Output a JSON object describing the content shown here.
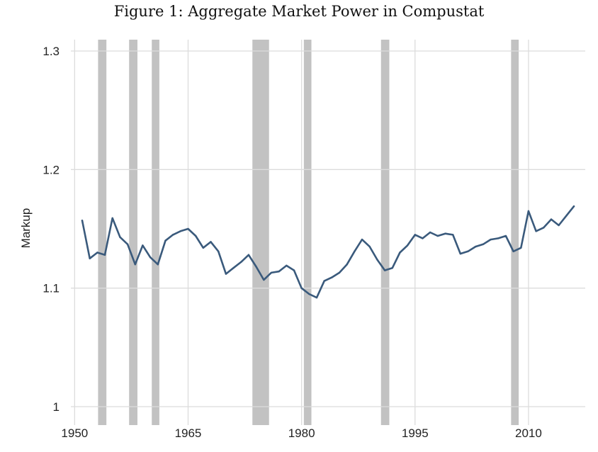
{
  "title": "Figure 1: Aggregate Market Power in Compustat",
  "chart_data": {
    "type": "line",
    "title": "Figure 1: Aggregate Market Power in Compustat",
    "xlabel": "",
    "ylabel": "Markup",
    "xlim": [
      1949.5,
      2017.5
    ],
    "ylim": [
      1.0,
      1.3
    ],
    "x_ticks": [
      1950,
      1965,
      1980,
      1995,
      2010
    ],
    "y_ticks": [
      1,
      1.1,
      1.2,
      1.3
    ],
    "y_tick_labels": [
      "1",
      "1.1",
      "1.2",
      "1.3"
    ],
    "grid": true,
    "line_color": "#3a5a7c",
    "recession_color": "#c2c2c2",
    "recessions": [
      [
        1953.1,
        1954.2
      ],
      [
        1957.2,
        1958.3
      ],
      [
        1960.2,
        1961.2
      ],
      [
        1973.5,
        1975.7
      ],
      [
        1980.3,
        1981.3
      ],
      [
        1990.5,
        1991.6
      ],
      [
        2007.7,
        2008.7
      ]
    ],
    "series": [
      {
        "x": [
          1951,
          1952,
          1953,
          1954,
          1955,
          1956,
          1957,
          1958,
          1959,
          1960,
          1961,
          1962,
          1963,
          1964,
          1965,
          1966,
          1967,
          1968,
          1969,
          1970,
          1971,
          1972,
          1973,
          1974,
          1975,
          1976,
          1977,
          1978,
          1979,
          1980,
          1981,
          1982,
          1983,
          1984,
          1985,
          1986,
          1987,
          1988,
          1989,
          1990,
          1991,
          1992,
          1993,
          1994,
          1995,
          1996,
          1997,
          1998,
          1999,
          2000,
          2001,
          2002,
          2003,
          2004,
          2005,
          2006,
          2007,
          2008,
          2009,
          2010,
          2011,
          2012,
          2013,
          2014,
          2015,
          2016
        ],
        "values": [
          1.157,
          1.125,
          1.13,
          1.128,
          1.159,
          1.143,
          1.137,
          1.12,
          1.136,
          1.126,
          1.12,
          1.14,
          1.145,
          1.148,
          1.15,
          1.144,
          1.134,
          1.139,
          1.131,
          1.112,
          1.117,
          1.122,
          1.128,
          1.118,
          1.107,
          1.113,
          1.114,
          1.119,
          1.115,
          1.1,
          1.095,
          1.092,
          1.106,
          1.109,
          1.113,
          1.12,
          1.131,
          1.141,
          1.135,
          1.124,
          1.115,
          1.117,
          1.13,
          1.136,
          1.145,
          1.142,
          1.147,
          1.144,
          1.146,
          1.145,
          1.129,
          1.131,
          1.135,
          1.137,
          1.141,
          1.142,
          1.144,
          1.131,
          1.134,
          1.165,
          1.148,
          1.151,
          1.158,
          1.153,
          1.161,
          1.169
        ]
      }
    ]
  }
}
